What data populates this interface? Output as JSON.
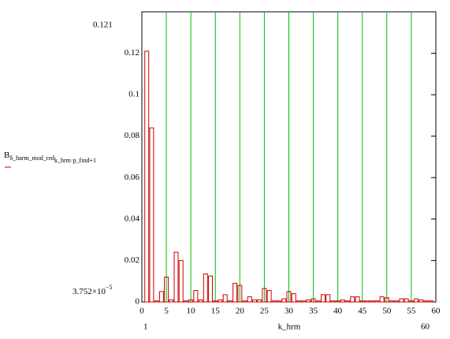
{
  "chart_data": {
    "type": "bar",
    "y_label": {
      "base": "B",
      "sub": "δ_harm_mod_red",
      "subsub": "k_hrm·p_find+1"
    },
    "x_label": "k_hrm",
    "y_limit_labels": {
      "upper": "0.121",
      "lower_mantissa": "3.752×10",
      "lower_exponent": "−5"
    },
    "x_limit_labels": {
      "lower": "1",
      "upper": "60"
    },
    "x": [
      1,
      2,
      3,
      4,
      5,
      6,
      7,
      8,
      9,
      10,
      11,
      12,
      13,
      14,
      15,
      16,
      17,
      18,
      19,
      20,
      21,
      22,
      23,
      24,
      25,
      26,
      27,
      28,
      29,
      30,
      31,
      32,
      33,
      34,
      35,
      36,
      37,
      38,
      39,
      40,
      41,
      42,
      43,
      44,
      45,
      46,
      47,
      48,
      49,
      50,
      51,
      52,
      53,
      54,
      55,
      56,
      57,
      58,
      59
    ],
    "values": [
      0.121,
      0.084,
      0.0005,
      0.005,
      0.012,
      0.001,
      0.024,
      0.02,
      0.0005,
      0.001,
      0.0055,
      0.001,
      0.0135,
      0.0125,
      0.0005,
      0.001,
      0.0035,
      0.0005,
      0.009,
      0.008,
      0.0005,
      0.0025,
      0.001,
      0.001,
      0.0065,
      0.0055,
      0.0005,
      0.0005,
      0.0015,
      0.005,
      0.004,
      0.0005,
      0.0005,
      0.001,
      0.0015,
      0.0005,
      0.0035,
      0.0035,
      0.0005,
      0.0005,
      0.001,
      0.0005,
      0.0025,
      0.0025,
      0.0005,
      0.0005,
      0.0005,
      0.0005,
      0.0025,
      0.002,
      0.0005,
      0.0005,
      0.0015,
      0.0015,
      0.0005,
      0.0015,
      0.001,
      0.0005,
      0.0005
    ],
    "color": "#cc0000",
    "grid": true,
    "grid_color": "#00c000",
    "xlim": [
      0,
      60
    ],
    "xticks": [
      0,
      5,
      10,
      15,
      20,
      25,
      30,
      35,
      40,
      45,
      50,
      55,
      60
    ],
    "ylim": [
      0,
      0.14
    ],
    "yticks": [
      0,
      0.02,
      0.04,
      0.06,
      0.08,
      0.1,
      0.12
    ]
  }
}
